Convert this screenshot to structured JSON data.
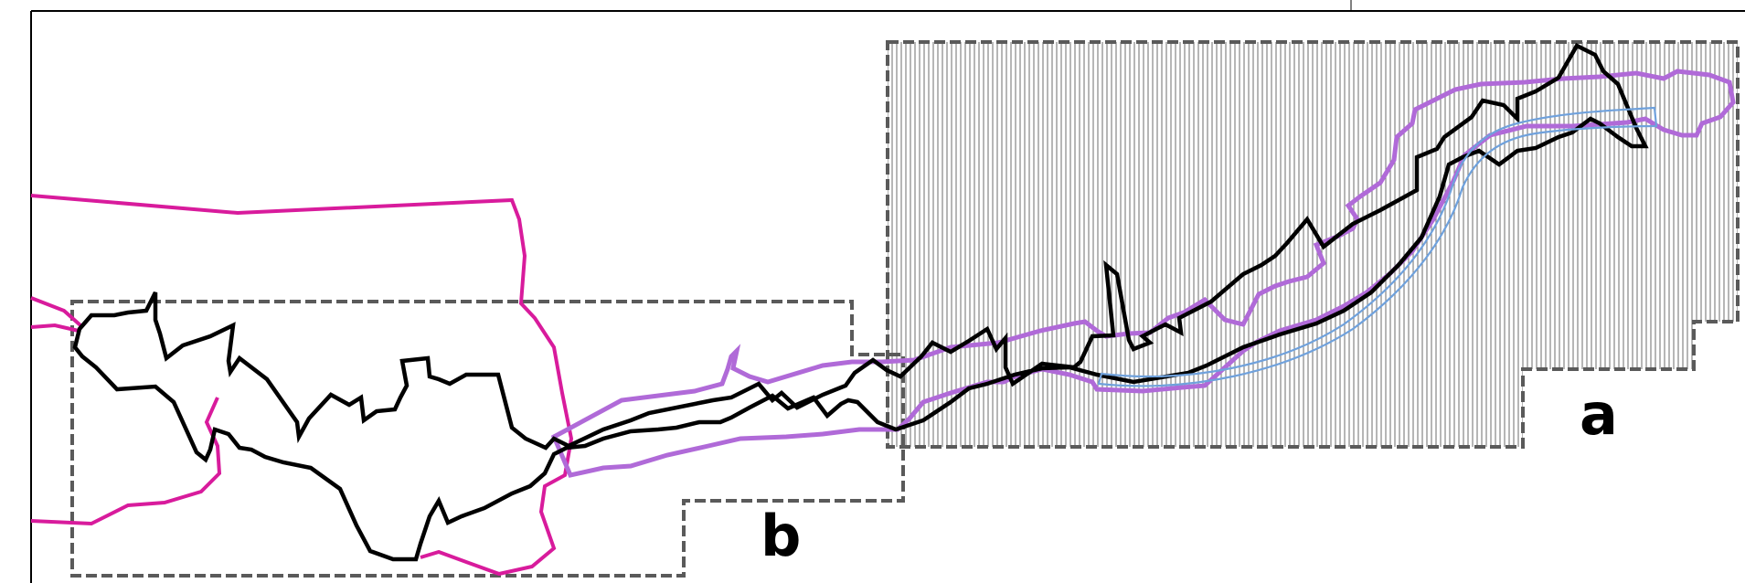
{
  "figure": {
    "labels": {
      "a": "a",
      "b": "b"
    },
    "colors": {
      "frame": "#000000",
      "zone_outline": "#5a5a5a",
      "hatch": "#7a7a7a",
      "magenta_boundary": "#d81b9c",
      "purple_boundary": "#b06ad8",
      "black_boundary": "#000000",
      "blue_channel": "#6fa1dc"
    },
    "layers": [
      "frame",
      "zone-a-hatched",
      "zone-b-outline",
      "magenta-boundary",
      "purple-corridor",
      "black-corridor",
      "blue-channel"
    ]
  }
}
